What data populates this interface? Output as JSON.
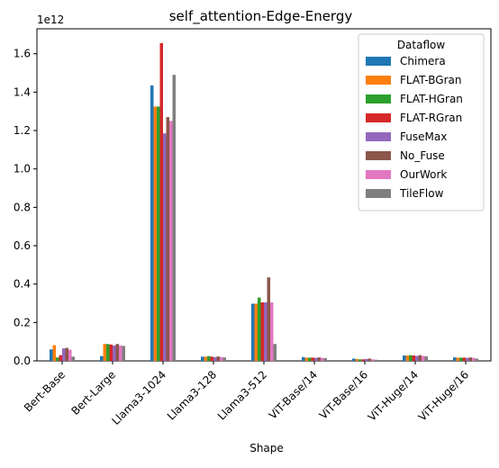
{
  "chart_data": {
    "type": "bar",
    "title": "self_attention-Edge-Energy",
    "xlabel": "Shape",
    "ylabel": "",
    "y_offset_text": "1e12",
    "ylim": [
      0,
      1.73
    ],
    "yticks": [
      0.0,
      0.2,
      0.4,
      0.6,
      0.8,
      1.0,
      1.2,
      1.4,
      1.6
    ],
    "ytick_labels": [
      "0.0",
      "0.2",
      "0.4",
      "0.6",
      "0.8",
      "1.0",
      "1.2",
      "1.4",
      "1.6"
    ],
    "categories": [
      "Bert-Base",
      "Bert-Large",
      "Llama3-1024",
      "Llama3-128",
      "Llama3-512",
      "ViT-Base/14",
      "ViT-Base/16",
      "ViT-Huge/14",
      "ViT-Huge/16"
    ],
    "legend": {
      "title": "Dataflow",
      "placement": "upper right"
    },
    "series": [
      {
        "name": "Chimera",
        "color": "#1f77b4",
        "values": [
          0.06,
          0.025,
          1.435,
          0.022,
          0.298,
          0.02,
          0.012,
          0.028,
          0.018
        ]
      },
      {
        "name": "FLAT-BGran",
        "color": "#ff7f0e",
        "values": [
          0.082,
          0.088,
          1.325,
          0.022,
          0.298,
          0.017,
          0.01,
          0.028,
          0.017
        ]
      },
      {
        "name": "FLAT-HGran",
        "color": "#2ca02c",
        "values": [
          0.018,
          0.088,
          1.325,
          0.025,
          0.33,
          0.017,
          0.008,
          0.03,
          0.017
        ]
      },
      {
        "name": "FLAT-RGran",
        "color": "#d62728",
        "values": [
          0.03,
          0.085,
          1.655,
          0.022,
          0.305,
          0.017,
          0.008,
          0.028,
          0.017
        ]
      },
      {
        "name": "FuseMax",
        "color": "#9467bd",
        "values": [
          0.065,
          0.08,
          1.185,
          0.02,
          0.305,
          0.016,
          0.01,
          0.026,
          0.016
        ]
      },
      {
        "name": "No_Fuse",
        "color": "#8c564b",
        "values": [
          0.068,
          0.088,
          1.27,
          0.023,
          0.435,
          0.018,
          0.012,
          0.03,
          0.018
        ]
      },
      {
        "name": "OurWork",
        "color": "#e377c2",
        "values": [
          0.058,
          0.08,
          1.25,
          0.02,
          0.305,
          0.016,
          0.008,
          0.026,
          0.016
        ]
      },
      {
        "name": "TileFlow",
        "color": "#7f7f7f",
        "values": [
          0.022,
          0.078,
          1.49,
          0.018,
          0.088,
          0.014,
          0.006,
          0.024,
          0.012
        ]
      }
    ]
  }
}
